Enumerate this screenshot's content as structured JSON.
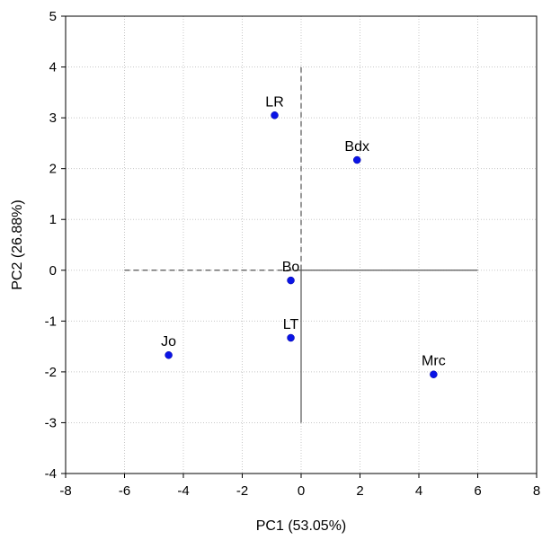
{
  "chart_data": {
    "type": "scatter",
    "title": "",
    "xlabel": "PC1 (53.05%)",
    "ylabel": "PC2 (26.88%)",
    "xlim": [
      -8,
      8
    ],
    "ylim": [
      -4,
      5
    ],
    "xticks": [
      -8,
      -6,
      -4,
      -2,
      0,
      2,
      4,
      6,
      8
    ],
    "yticks": [
      -4,
      -3,
      -2,
      -1,
      0,
      1,
      2,
      3,
      4,
      5
    ],
    "grid": true,
    "points": [
      {
        "label": "LR",
        "x": -0.9,
        "y": 3.05
      },
      {
        "label": "Bdx",
        "x": 1.9,
        "y": 2.17
      },
      {
        "label": "Bo",
        "x": -0.35,
        "y": -0.2
      },
      {
        "label": "LT",
        "x": -0.35,
        "y": -1.33
      },
      {
        "label": "Jo",
        "x": -4.5,
        "y": -1.67
      },
      {
        "label": "Mrc",
        "x": 4.5,
        "y": -2.05
      }
    ],
    "reference_lines": [
      {
        "style": "dashed",
        "x": [
          -6,
          0
        ],
        "y": [
          0,
          0
        ]
      },
      {
        "style": "dashed",
        "x": [
          0,
          0
        ],
        "y": [
          0,
          4
        ]
      },
      {
        "style": "solid",
        "x": [
          0,
          6
        ],
        "y": [
          0,
          0
        ]
      },
      {
        "style": "solid",
        "x": [
          0,
          0
        ],
        "y": [
          -3,
          0
        ]
      }
    ],
    "colors": {
      "points": "#0a14e6",
      "reference": "#555555",
      "grid": "#c8c8c8"
    }
  }
}
